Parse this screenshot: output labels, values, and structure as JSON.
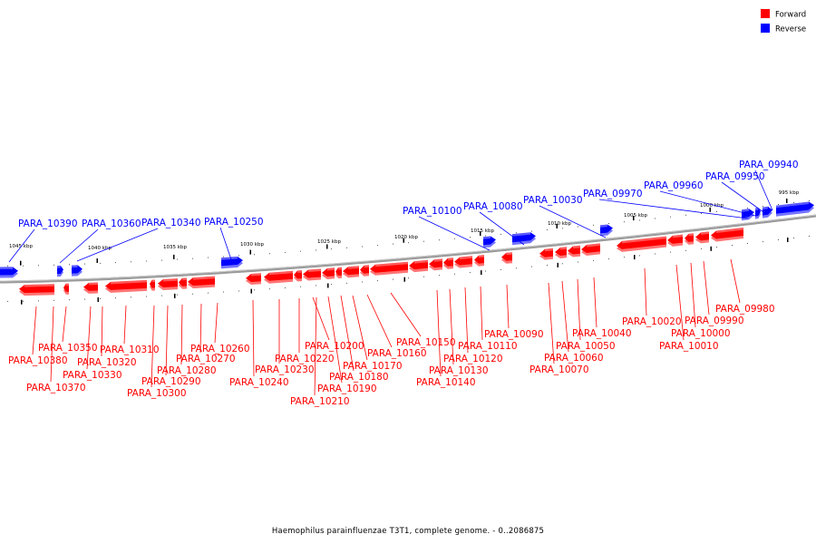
{
  "caption": "Haemophilus parainfluenzae T3T1, complete genome. - 0..2086875",
  "legend": [
    {
      "label": "Forward",
      "color": "#ff0000"
    },
    {
      "label": "Reverse",
      "color": "#0000ff"
    }
  ],
  "colors": {
    "forward": "#ff0000",
    "reverse": "#0000ff",
    "backbone": "#808080"
  },
  "scale": {
    "labels": [
      "1045 kbp",
      "1040 kbp",
      "1035 kbp",
      "1030 kbp",
      "1025 kbp",
      "1020 kbp",
      "1015 kbp",
      "1010 kbp",
      "1005 kbp",
      "1000 kbp",
      "995 kbp"
    ]
  },
  "reverse_genes": [
    "PARA_10390",
    "PARA_10360",
    "PARA_10340",
    "PARA_10250",
    "PARA_10100",
    "PARA_10080",
    "PARA_10030",
    "PARA_09970",
    "PARA_09960",
    "PARA_09950",
    "PARA_09940"
  ],
  "forward_genes": [
    "PARA_10380",
    "PARA_10370",
    "PARA_10350",
    "PARA_10330",
    "PARA_10320",
    "PARA_10310",
    "PARA_10300",
    "PARA_10290",
    "PARA_10280",
    "PARA_10270",
    "PARA_10260",
    "PARA_10240",
    "PARA_10230",
    "PARA_10220",
    "PARA_10210",
    "PARA_10200",
    "PARA_10190",
    "PARA_10180",
    "PARA_10170",
    "PARA_10160",
    "PARA_10150",
    "PARA_10140",
    "PARA_10130",
    "PARA_10120",
    "PARA_10110",
    "PARA_10090",
    "PARA_10070",
    "PARA_10060",
    "PARA_10050",
    "PARA_10040",
    "PARA_10020",
    "PARA_10010",
    "PARA_10000",
    "PARA_09990",
    "PARA_09980"
  ]
}
